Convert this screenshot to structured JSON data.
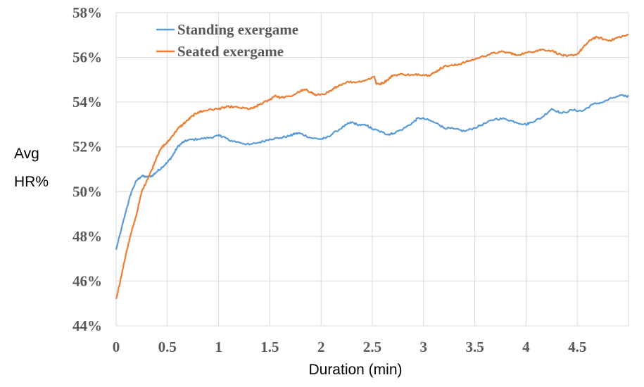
{
  "chart_data": {
    "type": "line",
    "title": "",
    "xlabel": "Duration (min)",
    "ylabel_lines": [
      "Avg",
      "HR%"
    ],
    "xlim": [
      0,
      5
    ],
    "ylim": [
      44,
      58
    ],
    "x_ticks": [
      0,
      0.5,
      1,
      1.5,
      2,
      2.5,
      3,
      3.5,
      4,
      4.5
    ],
    "x_tick_labels": [
      "0",
      "0.5",
      "1",
      "1.5",
      "2",
      "2.5",
      "3",
      "3.5",
      "4",
      "4.5"
    ],
    "y_ticks": [
      44,
      46,
      48,
      50,
      52,
      54,
      56,
      58
    ],
    "y_tick_labels": [
      "44%",
      "46%",
      "48%",
      "50%",
      "52%",
      "54%",
      "56%",
      "58%"
    ],
    "grid": true,
    "legend_position": "top-left",
    "series": [
      {
        "name": "Standing exergame",
        "color": "#5b9bd5",
        "points": [
          [
            0,
            47.4
          ],
          [
            0.05,
            48.3
          ],
          [
            0.1,
            49.2
          ],
          [
            0.15,
            50.0
          ],
          [
            0.2,
            50.5
          ],
          [
            0.25,
            50.7
          ],
          [
            0.3,
            50.65
          ],
          [
            0.35,
            50.7
          ],
          [
            0.4,
            50.9
          ],
          [
            0.45,
            51.1
          ],
          [
            0.5,
            51.3
          ],
          [
            0.55,
            51.6
          ],
          [
            0.6,
            52.0
          ],
          [
            0.65,
            52.2
          ],
          [
            0.7,
            52.3
          ],
          [
            0.8,
            52.35
          ],
          [
            0.9,
            52.4
          ],
          [
            1.0,
            52.5
          ],
          [
            1.05,
            52.45
          ],
          [
            1.1,
            52.3
          ],
          [
            1.2,
            52.2
          ],
          [
            1.3,
            52.1
          ],
          [
            1.4,
            52.2
          ],
          [
            1.5,
            52.35
          ],
          [
            1.6,
            52.4
          ],
          [
            1.7,
            52.5
          ],
          [
            1.75,
            52.6
          ],
          [
            1.8,
            52.6
          ],
          [
            1.9,
            52.4
          ],
          [
            2.0,
            52.35
          ],
          [
            2.05,
            52.4
          ],
          [
            2.15,
            52.7
          ],
          [
            2.25,
            53.0
          ],
          [
            2.3,
            53.1
          ],
          [
            2.35,
            53.0
          ],
          [
            2.45,
            52.95
          ],
          [
            2.5,
            52.8
          ],
          [
            2.6,
            52.65
          ],
          [
            2.65,
            52.55
          ],
          [
            2.7,
            52.6
          ],
          [
            2.8,
            52.8
          ],
          [
            2.9,
            53.1
          ],
          [
            2.95,
            53.3
          ],
          [
            3.05,
            53.2
          ],
          [
            3.15,
            53.0
          ],
          [
            3.2,
            52.85
          ],
          [
            3.3,
            52.8
          ],
          [
            3.4,
            52.7
          ],
          [
            3.5,
            52.85
          ],
          [
            3.6,
            53.05
          ],
          [
            3.7,
            53.25
          ],
          [
            3.8,
            53.25
          ],
          [
            3.9,
            53.1
          ],
          [
            4.0,
            53.0
          ],
          [
            4.05,
            53.1
          ],
          [
            4.15,
            53.3
          ],
          [
            4.25,
            53.7
          ],
          [
            4.35,
            53.5
          ],
          [
            4.45,
            53.65
          ],
          [
            4.55,
            53.6
          ],
          [
            4.65,
            53.9
          ],
          [
            4.75,
            54.0
          ],
          [
            4.85,
            54.2
          ],
          [
            4.95,
            54.3
          ],
          [
            5.0,
            54.25
          ]
        ]
      },
      {
        "name": "Seated exergame",
        "color": "#ed7d31",
        "points": [
          [
            0,
            45.2
          ],
          [
            0.05,
            46.2
          ],
          [
            0.1,
            47.3
          ],
          [
            0.15,
            48.2
          ],
          [
            0.2,
            49.0
          ],
          [
            0.25,
            50.0
          ],
          [
            0.3,
            50.5
          ],
          [
            0.35,
            51.0
          ],
          [
            0.4,
            51.6
          ],
          [
            0.45,
            52.0
          ],
          [
            0.5,
            52.2
          ],
          [
            0.55,
            52.5
          ],
          [
            0.6,
            52.8
          ],
          [
            0.65,
            53.0
          ],
          [
            0.7,
            53.2
          ],
          [
            0.75,
            53.4
          ],
          [
            0.8,
            53.55
          ],
          [
            0.85,
            53.6
          ],
          [
            0.9,
            53.65
          ],
          [
            1.0,
            53.7
          ],
          [
            1.05,
            53.75
          ],
          [
            1.1,
            53.8
          ],
          [
            1.2,
            53.75
          ],
          [
            1.3,
            53.7
          ],
          [
            1.35,
            53.75
          ],
          [
            1.4,
            53.9
          ],
          [
            1.5,
            54.1
          ],
          [
            1.55,
            54.3
          ],
          [
            1.6,
            54.2
          ],
          [
            1.7,
            54.25
          ],
          [
            1.8,
            54.5
          ],
          [
            1.85,
            54.55
          ],
          [
            1.9,
            54.45
          ],
          [
            1.95,
            54.3
          ],
          [
            2.05,
            54.4
          ],
          [
            2.1,
            54.5
          ],
          [
            2.15,
            54.7
          ],
          [
            2.25,
            54.9
          ],
          [
            2.35,
            54.9
          ],
          [
            2.45,
            55.0
          ],
          [
            2.52,
            55.15
          ],
          [
            2.54,
            54.8
          ],
          [
            2.6,
            54.85
          ],
          [
            2.65,
            55.0
          ],
          [
            2.7,
            55.2
          ],
          [
            2.8,
            55.25
          ],
          [
            2.9,
            55.2
          ],
          [
            2.95,
            55.25
          ],
          [
            3.05,
            55.2
          ],
          [
            3.1,
            55.3
          ],
          [
            3.15,
            55.45
          ],
          [
            3.2,
            55.6
          ],
          [
            3.3,
            55.65
          ],
          [
            3.35,
            55.7
          ],
          [
            3.45,
            55.85
          ],
          [
            3.55,
            56.0
          ],
          [
            3.65,
            56.15
          ],
          [
            3.75,
            56.25
          ],
          [
            3.85,
            56.2
          ],
          [
            3.9,
            56.1
          ],
          [
            4.0,
            56.2
          ],
          [
            4.1,
            56.3
          ],
          [
            4.15,
            56.35
          ],
          [
            4.25,
            56.3
          ],
          [
            4.35,
            56.1
          ],
          [
            4.4,
            56.05
          ],
          [
            4.5,
            56.15
          ],
          [
            4.55,
            56.4
          ],
          [
            4.6,
            56.65
          ],
          [
            4.65,
            56.85
          ],
          [
            4.7,
            56.9
          ],
          [
            4.8,
            56.75
          ],
          [
            4.85,
            56.8
          ],
          [
            4.9,
            56.9
          ],
          [
            5.0,
            57.0
          ]
        ]
      }
    ]
  }
}
